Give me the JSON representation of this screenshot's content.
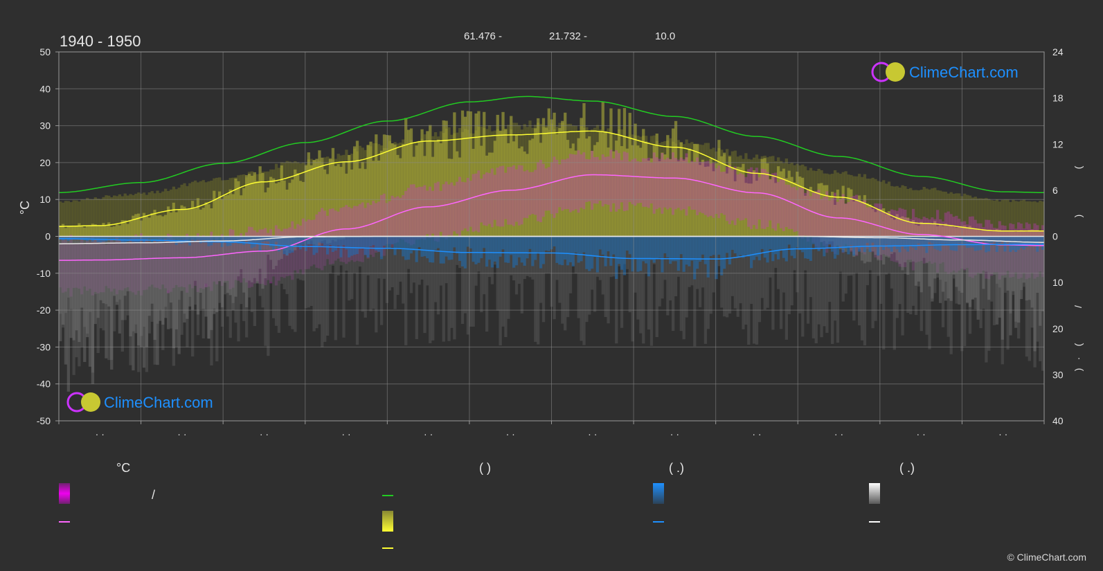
{
  "header": {
    "period": "1940 - 1950",
    "stat_a": "61.476 -",
    "stat_b": "21.732 -",
    "stat_c": "10.0"
  },
  "brand": {
    "name": "ClimeChart.com",
    "copyright": "© ClimeChart.com"
  },
  "legend": {
    "col1_header": "°C",
    "col1_slash": "/",
    "col2_header": "(          )",
    "col3_header": "(    .)",
    "col4_header": "(    .)"
  },
  "colors": {
    "background": "#2f2f2f",
    "daylight": "#22cc22",
    "sunshine": "#ffff33",
    "temp_mean": "#ff66ff",
    "temp_band": "#dd00dd",
    "rain": "#1e90ff",
    "snow": "#ffffff",
    "brand_blue": "#1e90ff"
  },
  "chart_data": {
    "type": "line",
    "title": "1940 - 1950",
    "ylabel": "°C",
    "ylim": [
      -50,
      50
    ],
    "y_ticks": [
      50,
      40,
      30,
      20,
      10,
      0,
      -10,
      -20,
      -30,
      -40,
      -50
    ],
    "y2_top_ticks": [
      24,
      18,
      12,
      6,
      0
    ],
    "y2_top_lim": [
      0,
      24
    ],
    "y2_bottom_ticks": [
      0,
      10,
      20,
      30,
      40
    ],
    "y2_bottom_lim": [
      0,
      40
    ],
    "y2_label_glyphs": [
      "(",
      ")",
      "/",
      "(",
      "·",
      ")"
    ],
    "x_tick_labels": [
      "· ·",
      "· ·",
      "· ·",
      "· ·",
      "· ·",
      "· ·",
      "· ·",
      "· ·",
      "· ·",
      "· ·",
      "· ·",
      "· ·"
    ],
    "x_months": 12,
    "grid": true,
    "series": [
      {
        "key": "daylight",
        "unit": "h",
        "x": [
          0,
          1,
          2,
          3,
          4,
          5,
          5.7,
          6.5,
          7.5,
          8.5,
          9.5,
          10.5,
          11.5,
          12
        ],
        "values": [
          5.7,
          7.0,
          9.5,
          12.2,
          15.0,
          17.5,
          18.2,
          17.6,
          15.6,
          13.0,
          10.4,
          7.8,
          5.8,
          5.7
        ]
      },
      {
        "key": "sunshine",
        "unit": "h",
        "x": [
          0,
          0.5,
          1.5,
          2.5,
          3.5,
          4.5,
          5.5,
          6.5,
          7.5,
          8.5,
          9.5,
          10.5,
          11.5,
          12
        ],
        "values": [
          1.3,
          1.4,
          3.5,
          7.1,
          9.7,
          12.4,
          13.2,
          13.7,
          11.6,
          8.2,
          5.1,
          1.7,
          0.7,
          0.7
        ]
      },
      {
        "key": "temp_mean",
        "unit": "°C",
        "x": [
          0,
          0.5,
          1.5,
          2.5,
          3.5,
          4.5,
          5.5,
          6.5,
          7.5,
          8.5,
          9.5,
          10.5,
          11.5,
          12
        ],
        "values": [
          -6.5,
          -6.4,
          -5.8,
          -4.0,
          2.0,
          8.0,
          12.5,
          16.7,
          15.8,
          11.8,
          5.0,
          0.5,
          -2.3,
          -2.5
        ]
      },
      {
        "key": "rain",
        "unit": "mm",
        "x": [
          0,
          1,
          2,
          3,
          4,
          5,
          6,
          7,
          8,
          9,
          10,
          11,
          12
        ],
        "values": [
          0.5,
          0.8,
          1.2,
          2.2,
          2.6,
          3.5,
          3.6,
          4.8,
          4.9,
          2.7,
          2.1,
          1.8,
          1.7
        ]
      },
      {
        "key": "snow",
        "unit": "mm",
        "x": [
          0,
          1,
          2,
          3,
          4,
          5,
          6,
          7,
          8,
          9,
          10,
          11,
          12
        ],
        "values": [
          1.6,
          1.4,
          1.0,
          0.1,
          0,
          0,
          0,
          0,
          0,
          0,
          0.3,
          0.8,
          1.3
        ]
      }
    ]
  }
}
